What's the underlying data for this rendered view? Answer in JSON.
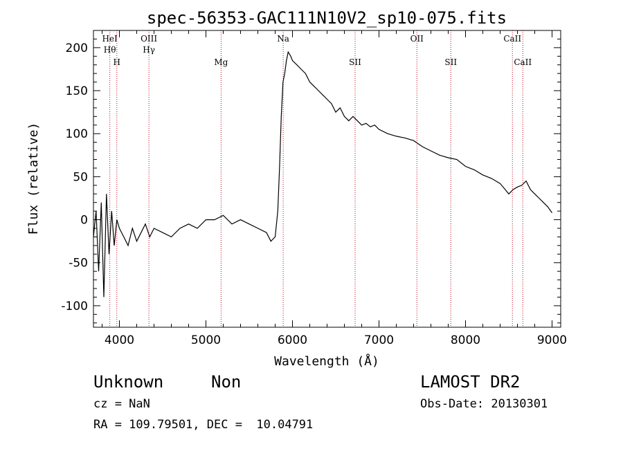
{
  "chart_data": {
    "type": "line",
    "title": "spec-56353-GAC111N10V2_sp10-075.fits",
    "xlabel": "Wavelength (Å)",
    "ylabel": "Flux (relative)",
    "xlim": [
      3700,
      9100
    ],
    "ylim": [
      -125,
      220
    ],
    "xticks": [
      4000,
      5000,
      6000,
      7000,
      8000,
      9000
    ],
    "yticks": [
      -100,
      -50,
      0,
      50,
      100,
      150,
      200
    ],
    "grid": false,
    "series": [
      {
        "x": [
          3700,
          3730,
          3760,
          3790,
          3820,
          3850,
          3880,
          3910,
          3940,
          3970,
          4000,
          4050,
          4100,
          4150,
          4200,
          4250,
          4300,
          4350,
          4400,
          4500,
          4600,
          4700,
          4800,
          4900,
          5000,
          5100,
          5200,
          5300,
          5400,
          5500,
          5600,
          5700,
          5750,
          5800,
          5830,
          5850,
          5870,
          5890,
          5910,
          5930,
          5950,
          5980,
          6000,
          6050,
          6100,
          6150,
          6200,
          6250,
          6300,
          6350,
          6400,
          6450,
          6500,
          6550,
          6600,
          6650,
          6700,
          6750,
          6800,
          6850,
          6900,
          6950,
          7000,
          7100,
          7200,
          7300,
          7400,
          7500,
          7600,
          7700,
          7800,
          7900,
          8000,
          8100,
          8200,
          8300,
          8400,
          8450,
          8500,
          8550,
          8600,
          8650,
          8700,
          8750,
          8800,
          8850,
          8900,
          8950,
          9000
        ],
        "values": [
          -20,
          10,
          -60,
          20,
          -90,
          30,
          -40,
          10,
          -30,
          0,
          -10,
          -20,
          -30,
          -10,
          -25,
          -15,
          -5,
          -20,
          -10,
          -15,
          -20,
          -10,
          -5,
          -10,
          0,
          0,
          5,
          -5,
          0,
          -5,
          -10,
          -15,
          -25,
          -20,
          10,
          60,
          120,
          160,
          170,
          185,
          195,
          190,
          185,
          180,
          175,
          170,
          160,
          155,
          150,
          145,
          140,
          135,
          125,
          130,
          120,
          115,
          120,
          115,
          110,
          112,
          108,
          110,
          105,
          100,
          97,
          95,
          92,
          85,
          80,
          75,
          72,
          70,
          62,
          58,
          52,
          48,
          42,
          36,
          30,
          35,
          38,
          40,
          45,
          35,
          30,
          25,
          20,
          15,
          8
        ]
      }
    ],
    "lines": [
      {
        "x": 3889,
        "label": "HeI",
        "label2": "Hθ"
      },
      {
        "x": 3970,
        "label": "H"
      },
      {
        "x": 4341,
        "label": "OIII",
        "label2": "Hγ"
      },
      {
        "x": 5175,
        "label": "Mg"
      },
      {
        "x": 5893,
        "label": "Na"
      },
      {
        "x": 6724,
        "label": "SII"
      },
      {
        "x": 7438,
        "label": "OII"
      },
      {
        "x": 7830,
        "label": "SII"
      },
      {
        "x": 8542,
        "label": "CaII"
      },
      {
        "x": 8662,
        "label": "CaII"
      }
    ],
    "line_color": "#c0001a"
  },
  "info": {
    "object_class": "Unknown",
    "subclass": "Non",
    "survey": "LAMOST DR2",
    "cz": "cz = NaN",
    "obs_date": "Obs-Date: 20130301",
    "coords": "RA = 109.79501, DEC =  10.04791"
  }
}
